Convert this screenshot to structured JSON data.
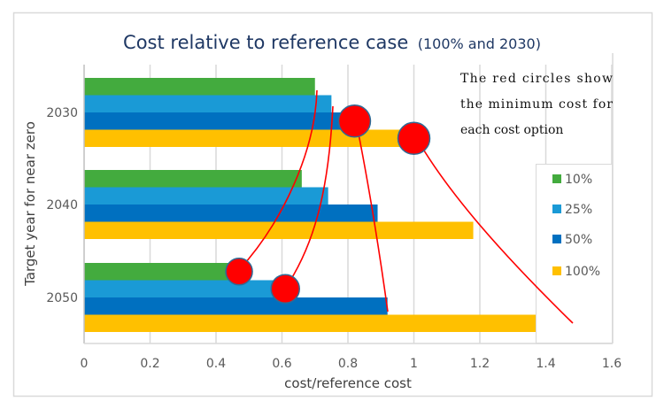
{
  "chart_data": {
    "type": "bar",
    "orientation": "horizontal",
    "title": "Cost relative to reference case",
    "title_suffix": "(100% and 2030)",
    "xlabel": "cost/reference cost",
    "ylabel": "Target year for near zero",
    "xlim": [
      0,
      1.6
    ],
    "xticks": [
      "0",
      "0.2",
      "0.4",
      "0.6",
      "0.8",
      "1",
      "1.2",
      "1.4",
      "1.6"
    ],
    "xtick_values": [
      0,
      0.2,
      0.4,
      0.6,
      0.8,
      1.0,
      1.2,
      1.4,
      1.6
    ],
    "grid": "vertical",
    "categories": [
      "2030",
      "2040",
      "2050"
    ],
    "series": [
      {
        "name": "10%",
        "color": "#43ab3e",
        "values": [
          0.7,
          0.66,
          0.47
        ]
      },
      {
        "name": "25%",
        "color": "#1a9ad6",
        "values": [
          0.75,
          0.74,
          0.61
        ]
      },
      {
        "name": "50%",
        "color": "#0070c0",
        "values": [
          0.82,
          0.89,
          0.92
        ]
      },
      {
        "name": "100%",
        "color": "#ffc000",
        "values": [
          1.0,
          1.18,
          1.48
        ]
      }
    ],
    "legend": {
      "position": "right",
      "labels": [
        "10%",
        "25%",
        "50%",
        "100%"
      ]
    },
    "annotation": {
      "lines": [
        "The red circles show",
        "the minimum cost for",
        "each cost option"
      ],
      "marker_color": "#ff0000",
      "minimum_markers": [
        {
          "series": "10%",
          "category": "2050",
          "value": 0.47
        },
        {
          "series": "25%",
          "category": "2050",
          "value": 0.61
        },
        {
          "series": "50%",
          "category": "2030",
          "value": 0.82
        },
        {
          "series": "100%",
          "category": "2030",
          "value": 1.0
        }
      ]
    }
  }
}
